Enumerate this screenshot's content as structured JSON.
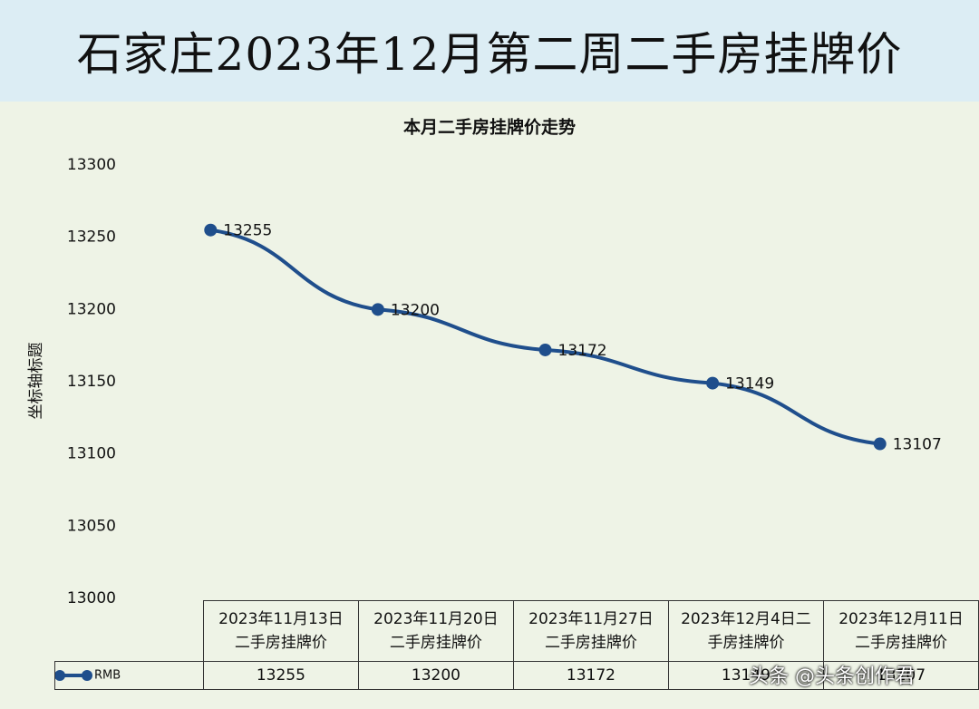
{
  "title": "石家庄2023年12月第二周二手房挂牌价",
  "chart_data": {
    "type": "line",
    "title": "本月二手房挂牌价走势",
    "y_label": "坐标轴标题",
    "categories": [
      "2023年11月13日二手房挂牌价",
      "2023年11月20日二手房挂牌价",
      "2023年11月27日二手房挂牌价",
      "2023年12月4日二手房挂牌价",
      "2023年12月11日二手房挂牌价"
    ],
    "series": [
      {
        "name": "RMB",
        "color": "#1f4e8c",
        "values": [
          13255,
          13200,
          13172,
          13149,
          13107
        ]
      }
    ],
    "ylim": [
      13000,
      13300
    ],
    "yticks": [
      13000,
      13050,
      13100,
      13150,
      13200,
      13250,
      13300
    ],
    "grid": false,
    "data_table": true
  },
  "watermark": "头条 @头条创作君"
}
